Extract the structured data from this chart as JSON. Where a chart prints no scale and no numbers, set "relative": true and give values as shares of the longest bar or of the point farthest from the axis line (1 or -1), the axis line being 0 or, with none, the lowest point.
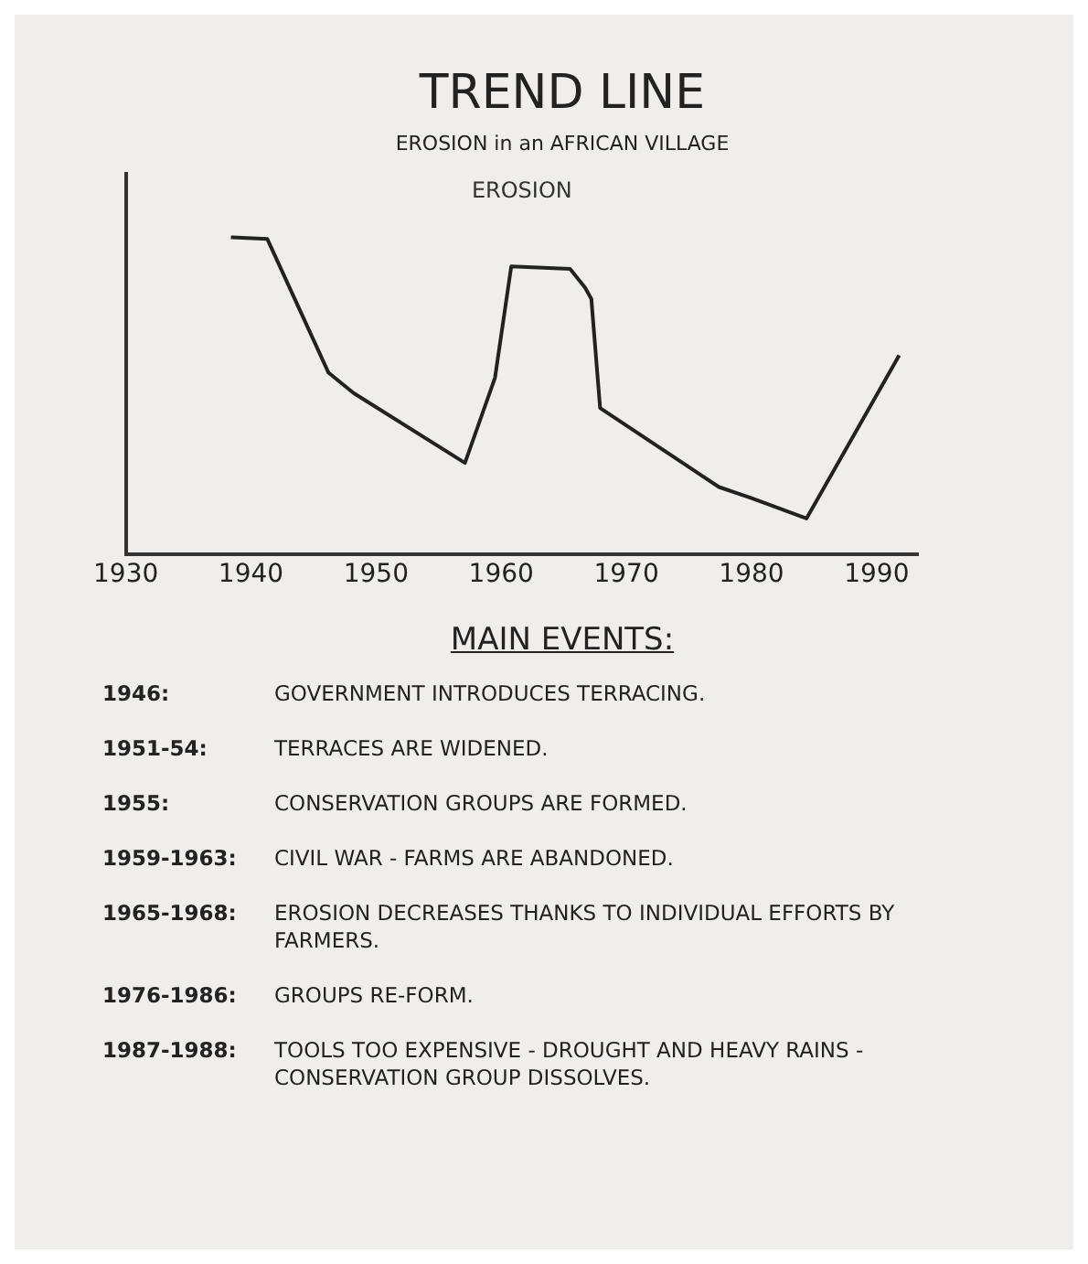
{
  "chart_data": {
    "type": "line",
    "title": "TREND LINE",
    "subtitle": "EROSION in an AFRICAN VILLAGE",
    "ylabel": "EROSION",
    "relative": true,
    "x": [
      1938.4,
      1941.3,
      1946.2,
      1948.2,
      1957.1,
      1959.5,
      1960.8,
      1965.5,
      1966.7,
      1967.2,
      1967.9,
      1977.4,
      1980.0,
      1984.4,
      1991.8
    ],
    "series": [
      {
        "color": "#222222",
        "values": [
          1,
          0.995,
          0.573,
          0.509,
          0.289,
          0.557,
          0.908,
          0.9,
          0.841,
          0.806,
          0.462,
          0.213,
          0.178,
          0.114,
          0.628
        ]
      }
    ],
    "xlim": [
      1930,
      1993.3
    ],
    "xticks": [
      1930,
      1940,
      1950,
      1960,
      1970,
      1980,
      1990
    ],
    "grid": false,
    "legend": false,
    "marker": "none",
    "line_style": "solid",
    "annotations": [
      "MAIN EVENTS:",
      "1946: GOVERNMENT INTRODUCES TERRACING.",
      "1951-54: TERRACES ARE WIDENED.",
      "1955: CONSERVATION GROUPS ARE FORMED.",
      "1959-1963: CIVIL WAR - FARMS ARE ABANDONED.",
      "1965-1968: EROSION DECREASES THANKS TO INDIVIDUAL EFFORTS BY FARMERS.",
      "1976-1986: GROUPS RE-FORM.",
      "1987-1988: TOOLS TOO EXPENSIVE - DROUGHT AND HEAVY RAINS - CONSERVATION GROUP DISSOLVES."
    ]
  }
}
